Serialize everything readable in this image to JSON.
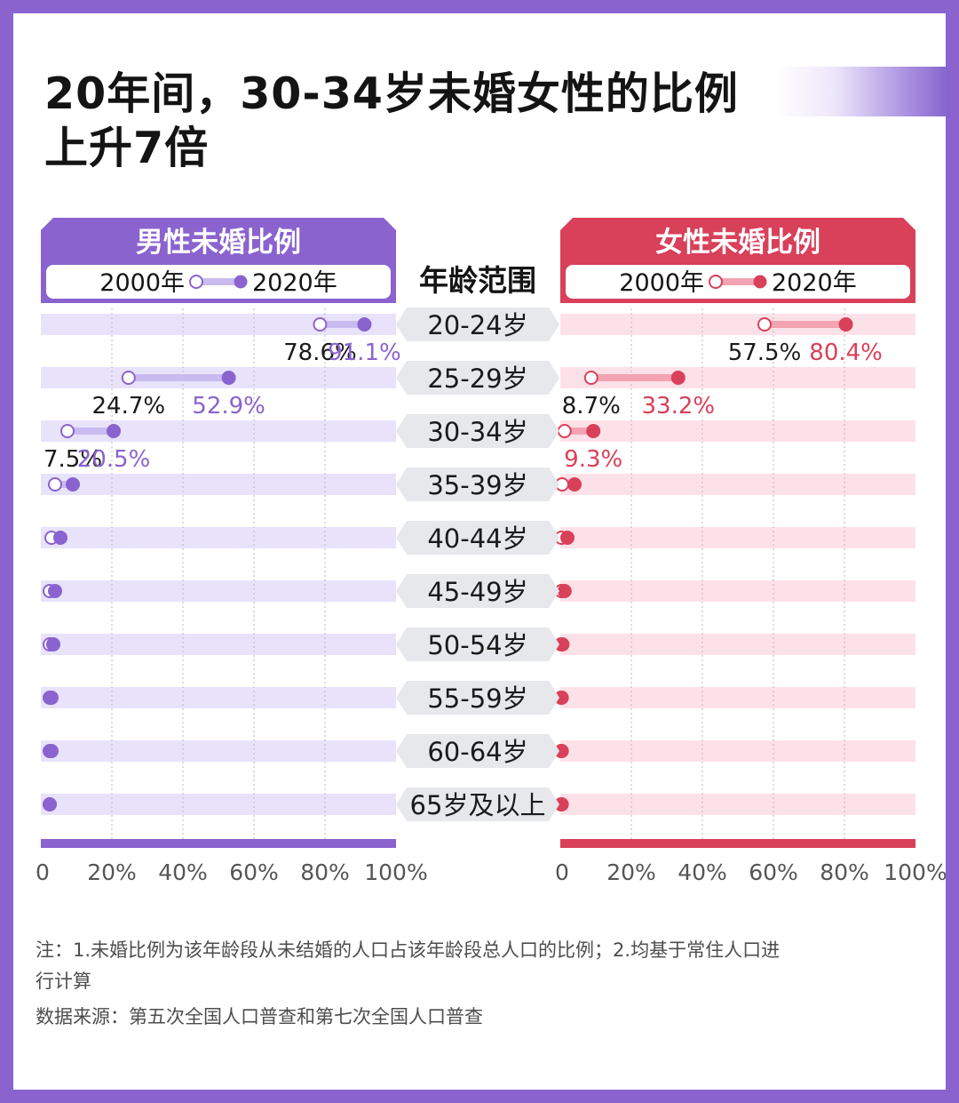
{
  "title": "20年间，30-34岁未婚女性的比例上升7倍",
  "notes": {
    "note": "注：1.未婚比例为该年龄段从未结婚的人口占该年龄段总人口的比例；2.均基于常住人口进行计算",
    "source": "数据来源：第五次全国人口普查和第七次全国人口普查"
  },
  "colors": {
    "male_dark": "#8a63cf",
    "male_light": "#c9bbf0",
    "male_band": "#e8e2fb",
    "female_dark": "#d9405a",
    "female_light": "#f3a3b2",
    "female_band": "#fde1e8",
    "age_pill": "#e6e8ec"
  },
  "chart_data": {
    "type": "dumbbell",
    "center_header": "年龄范围",
    "categories": [
      "20-24岁",
      "25-29岁",
      "30-34岁",
      "35-39岁",
      "40-44岁",
      "45-49岁",
      "50-54岁",
      "55-59岁",
      "60-64岁",
      "65岁及以上"
    ],
    "xlim": [
      0,
      100
    ],
    "x_ticks": [
      "0",
      "20%",
      "40%",
      "60%",
      "80%",
      "100%"
    ],
    "years": [
      "2000年",
      "2020年"
    ],
    "panels": [
      {
        "name": "男性未婚比例",
        "color_key": "male",
        "series": [
          {
            "name": "2000年",
            "values": [
              78.6,
              24.7,
              7.5,
              4,
              3,
              2.5,
              2.5,
              3,
              3,
              2.5
            ]
          },
          {
            "name": "2020年",
            "values": [
              91.1,
              52.9,
              20.5,
              9,
              5.5,
              4,
              3.5,
              2.5,
              2.5,
              2.5
            ]
          }
        ],
        "labels": [
          [
            "78.6%",
            "91.1%"
          ],
          [
            "24.7%",
            "52.9%"
          ],
          [
            "7.5%",
            "20.5%"
          ]
        ]
      },
      {
        "name": "女性未婚比例",
        "color_key": "female",
        "series": [
          {
            "name": "2000年",
            "values": [
              57.5,
              8.7,
              1.2,
              0.5,
              0.3,
              0.3,
              0.2,
              0.2,
              0.2,
              0.2
            ]
          },
          {
            "name": "2020年",
            "values": [
              80.4,
              33.2,
              9.3,
              4,
              2,
              1.2,
              0.6,
              0.4,
              0.4,
              0.4
            ]
          }
        ],
        "labels": [
          [
            "57.5%",
            "80.4%"
          ],
          [
            "8.7%",
            "33.2%"
          ],
          [
            "",
            "9.3%"
          ]
        ]
      }
    ]
  }
}
